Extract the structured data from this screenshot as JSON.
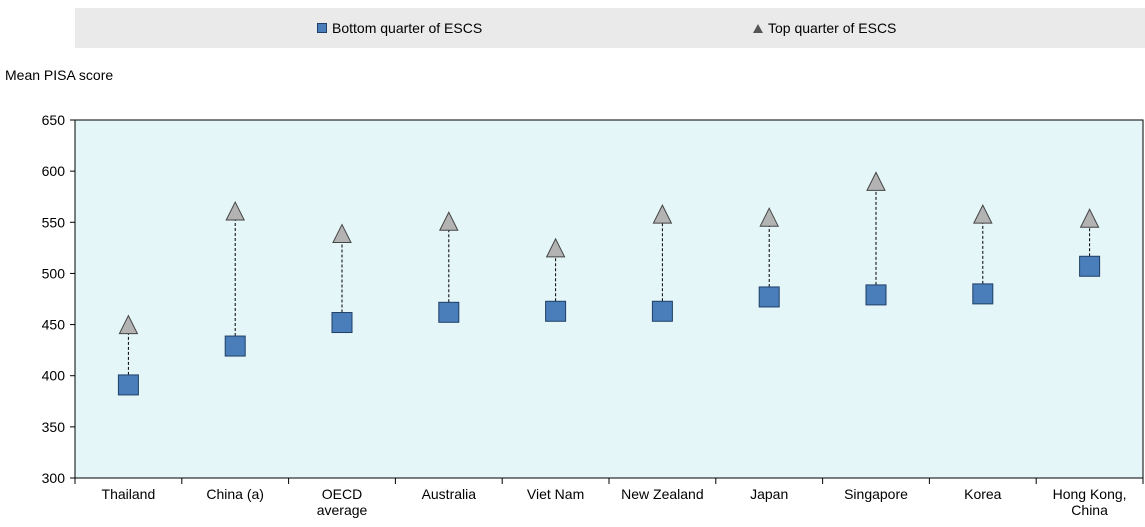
{
  "chart_data": {
    "type": "scatter",
    "categories": [
      "Thailand",
      "China (a)",
      "OECD average",
      "Australia",
      "Viet Nam",
      "New Zealand",
      "Japan",
      "Singapore",
      "Korea",
      "Hong Kong, China"
    ],
    "category_lines": [
      [
        "Thailand"
      ],
      [
        "China (a)"
      ],
      [
        "OECD",
        "average"
      ],
      [
        "Australia"
      ],
      [
        "Viet Nam"
      ],
      [
        "New Zealand"
      ],
      [
        "Japan"
      ],
      [
        "Singapore"
      ],
      [
        "Korea"
      ],
      [
        "Hong Kong,",
        "China"
      ]
    ],
    "series": [
      {
        "name": "Bottom quarter of ESCS",
        "marker": "square",
        "color": "#4a7ebb",
        "values": [
          391,
          429,
          452,
          462,
          463,
          463,
          477,
          479,
          480,
          507
        ]
      },
      {
        "name": "Top quarter of ESCS",
        "marker": "triangle",
        "color": "#b3b3b3",
        "values": [
          449,
          560,
          538,
          550,
          524,
          557,
          554,
          589,
          557,
          553
        ]
      }
    ],
    "ylabel": "Mean PISA score",
    "ylim": [
      300,
      650
    ],
    "yticks": [
      300,
      350,
      400,
      450,
      500,
      550,
      600,
      650
    ],
    "plot_background": "#e5f6f8",
    "legend_position": "top"
  }
}
